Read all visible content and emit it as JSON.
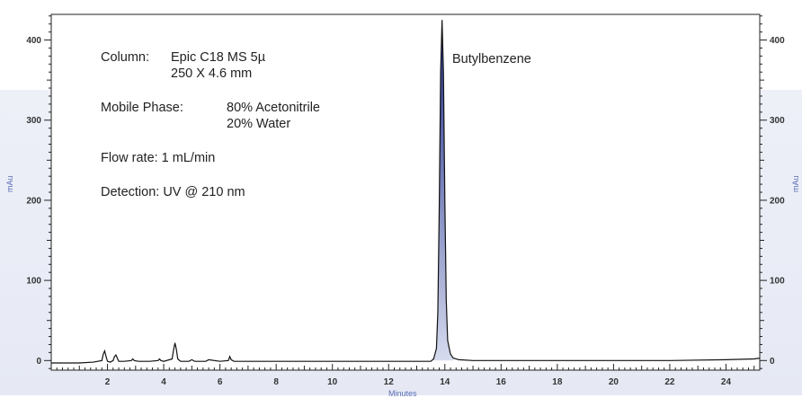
{
  "chart_data": {
    "type": "line",
    "xlabel": "Minutes",
    "ylabel_left": "mAu",
    "ylabel_right": "mAu",
    "xlim": [
      0,
      25.2
    ],
    "ylim": [
      -12,
      432
    ],
    "x_ticks": [
      2,
      4,
      6,
      8,
      10,
      12,
      14,
      16,
      18,
      20,
      22,
      24
    ],
    "y_ticks": [
      0,
      100,
      200,
      300,
      400
    ],
    "peak_label": "Butylbenzene",
    "annotations": {
      "column_label": "Column:",
      "column_line1": "Epic C18 MS 5µ",
      "column_line2": "250 X 4.6 mm",
      "mobile_label": "Mobile Phase:",
      "mobile_line1": "80% Acetonitrile",
      "mobile_line2": "20% Water",
      "flow": "Flow rate:  1 mL/min",
      "detection": "Detection: UV @ 210 nm"
    },
    "series": [
      {
        "x": [
          0.0,
          0.5,
          1.0,
          1.5,
          1.8,
          1.85,
          1.9,
          1.95,
          2.0,
          2.1,
          2.2,
          2.25,
          2.3,
          2.35,
          2.4,
          2.6,
          2.85,
          2.9,
          2.95,
          3.1,
          3.5,
          3.8,
          3.85,
          3.9,
          4.0,
          4.3,
          4.35,
          4.4,
          4.45,
          4.5,
          4.6,
          4.9,
          5.0,
          5.1,
          5.5,
          5.6,
          6.0,
          6.3,
          6.35,
          6.4,
          6.5,
          7.0,
          8.0,
          10.0,
          12.0,
          13.0,
          13.5,
          13.6,
          13.7,
          13.75,
          13.8,
          13.85,
          13.9,
          13.95,
          14.0,
          14.05,
          14.1,
          14.2,
          14.3,
          14.5,
          15.0,
          16.0,
          18.0,
          20.0,
          22.0,
          24.0,
          25.0,
          25.2
        ],
        "y": [
          -3,
          -3,
          -3,
          -2,
          0,
          8,
          12,
          5,
          -1,
          -2,
          0,
          5,
          7,
          3,
          -1,
          -1,
          0,
          2,
          0,
          -1,
          -1,
          0,
          2,
          0,
          -1,
          2,
          13,
          22,
          14,
          2,
          -1,
          -1,
          1,
          -1,
          -1,
          1,
          -1,
          0,
          5,
          1,
          -1,
          -1,
          -1,
          -1,
          -1,
          -1,
          -1,
          2,
          15,
          60,
          190,
          360,
          425,
          360,
          200,
          75,
          25,
          8,
          3,
          1,
          0,
          0,
          0,
          0,
          0,
          1,
          2,
          3
        ]
      }
    ]
  }
}
